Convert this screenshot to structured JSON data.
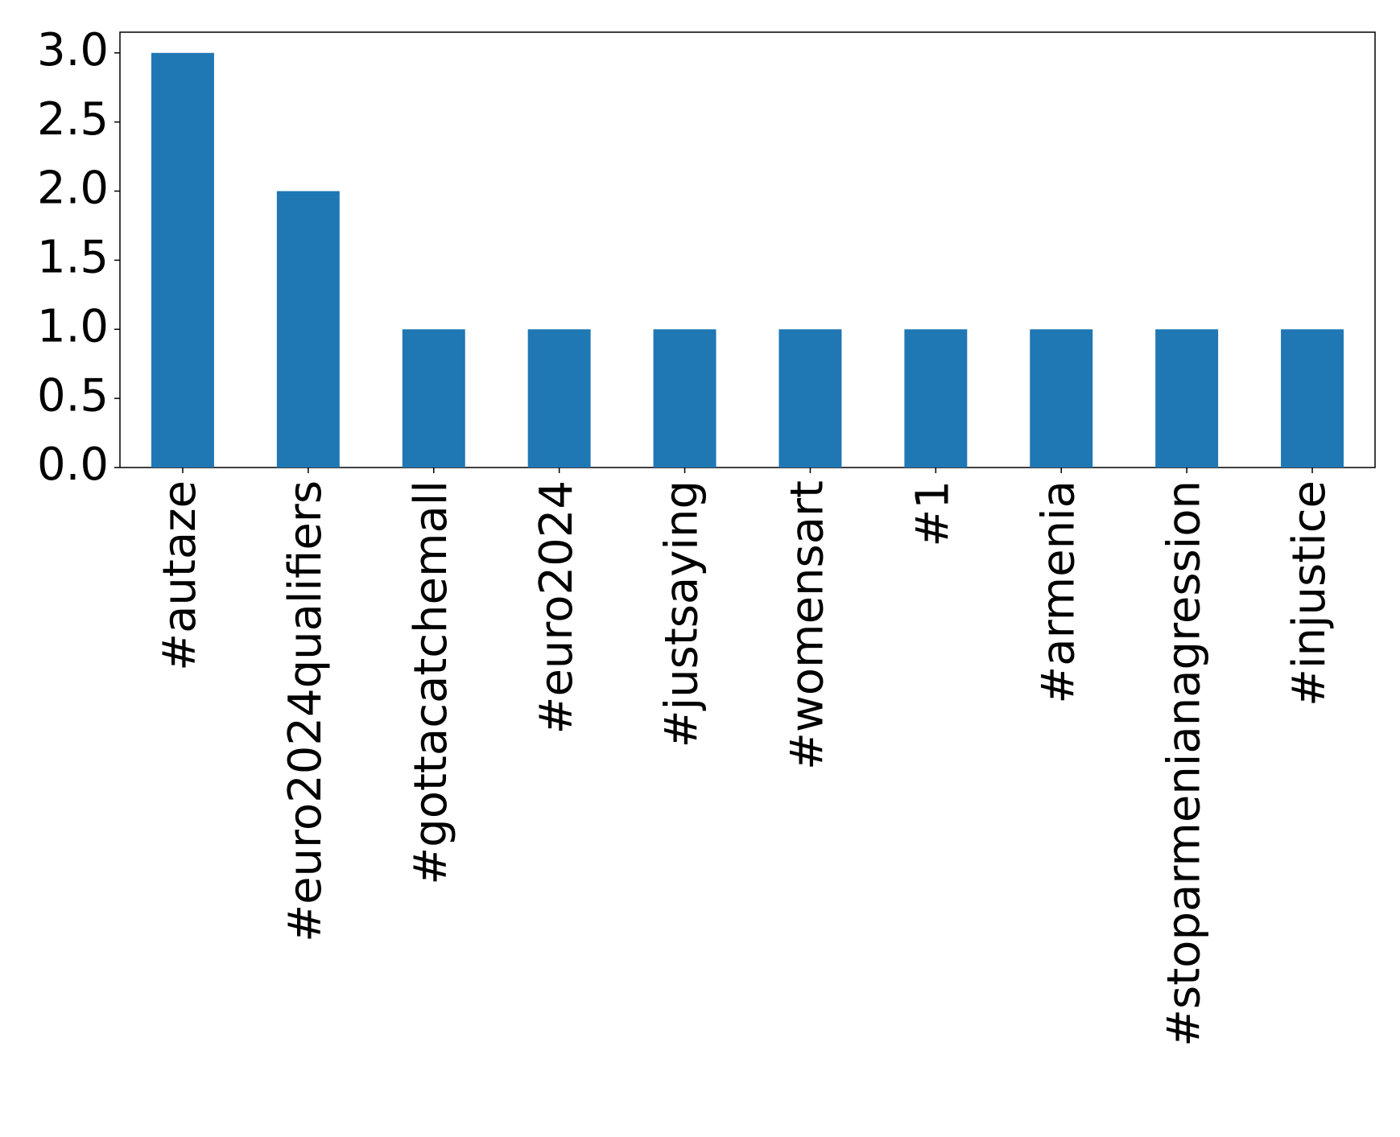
{
  "chart_data": {
    "type": "bar",
    "categories": [
      "#autaze",
      "#euro2024qualifiers",
      "#gottacatchemall",
      "#euro2024",
      "#justsaying",
      "#womensart",
      "#1",
      "#armenia",
      "#stoparmenianagression",
      "#injustice"
    ],
    "values": [
      3,
      2,
      1,
      1,
      1,
      1,
      1,
      1,
      1,
      1
    ],
    "color": "#1f77b4",
    "ylim": [
      0,
      3.15
    ],
    "yticks": [
      {
        "value": 0,
        "label": "0.0"
      },
      0.5,
      {
        "value": 1,
        "label": "1.0"
      },
      1.5,
      {
        "value": 2,
        "label": "2.0"
      },
      2.5,
      {
        "value": 3,
        "label": "3.0"
      }
    ],
    "grid": false
  }
}
